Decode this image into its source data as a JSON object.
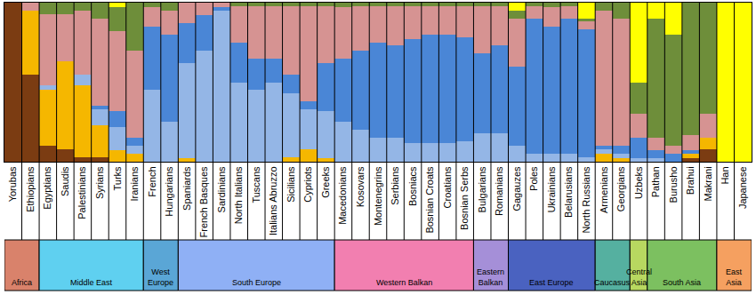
{
  "chart_data": {
    "type": "bar",
    "stacked": true,
    "tick_labels": "x",
    "ylim": [
      0,
      1
    ],
    "yticks": [],
    "categories": [
      "Yorubas",
      "Ethiopians",
      "Egyptians",
      "Saudis",
      "Palestinians",
      "Syrians",
      "Turks",
      "Iranians",
      "French",
      "Hungarians",
      "Spaniards",
      "French Basques",
      "Sardinians",
      "North Italians",
      "Tuscans",
      "Italians Abruzzo",
      "Sicilians",
      "Cypriots",
      "Greeks",
      "Macedonians",
      "Kosovars",
      "Montenegrins",
      "Serbians",
      "Bosniacs",
      "Bosnian Croats",
      "Croatians",
      "Bosnian Serbs",
      "Bulgarians",
      "Romanians",
      "Gagauzes",
      "Poles",
      "Ukrainians",
      "Belarusians",
      "North Russians",
      "Armenians",
      "Georgians",
      "Uzbeks",
      "Pathan",
      "Burusho",
      "Brahui",
      "Makrani",
      "Han",
      "Japanese"
    ],
    "series": [
      {
        "color": "#7b3c12",
        "values": [
          1,
          0.55,
          0.1,
          0.08,
          0.03,
          0.03,
          0,
          0,
          0,
          0,
          0,
          0,
          0,
          0,
          0,
          0,
          0,
          0,
          0,
          0,
          0,
          0,
          0,
          0,
          0,
          0,
          0,
          0,
          0,
          0,
          0,
          0,
          0,
          0,
          0,
          0,
          0,
          0,
          0,
          0.02,
          0.08,
          0,
          0
        ]
      },
      {
        "color": "#f5b700",
        "values": [
          0,
          0.4,
          0.35,
          0.55,
          0.45,
          0.2,
          0.07,
          0.05,
          0,
          0,
          0.02,
          0,
          0,
          0,
          0,
          0,
          0.03,
          0.08,
          0.02,
          0,
          0,
          0,
          0,
          0,
          0,
          0,
          0,
          0,
          0,
          0,
          0,
          0,
          0,
          0,
          0.05,
          0.02,
          0,
          0,
          0,
          0.03,
          0.07,
          0,
          0
        ]
      },
      {
        "color": "#94b6e6",
        "values": [
          0,
          0,
          0.03,
          0,
          0.07,
          0.1,
          0.15,
          0.05,
          0.45,
          0.25,
          0.6,
          0.7,
          0.95,
          0.5,
          0.45,
          0.5,
          0.4,
          0.25,
          0.3,
          0.25,
          0.2,
          0.15,
          0.15,
          0.12,
          0.12,
          0.12,
          0.13,
          0.18,
          0.18,
          0.1,
          0.05,
          0.05,
          0.05,
          0.03,
          0.03,
          0.03,
          0.02,
          0.02,
          0,
          0,
          0,
          0,
          0
        ]
      },
      {
        "color": "#4a86d6",
        "values": [
          0,
          0,
          0,
          0,
          0,
          0.02,
          0.1,
          0.05,
          0.4,
          0.55,
          0.25,
          0.22,
          0.02,
          0.25,
          0.2,
          0.15,
          0.12,
          0.05,
          0.3,
          0.4,
          0.5,
          0.6,
          0.58,
          0.65,
          0.68,
          0.68,
          0.65,
          0.5,
          0.55,
          0.5,
          0.85,
          0.8,
          0.85,
          0.8,
          0.02,
          0.05,
          0.13,
          0.05,
          0.05,
          0.02,
          0,
          0,
          0
        ]
      },
      {
        "color": "#d69392",
        "values": [
          0,
          0.05,
          0.45,
          0.3,
          0.4,
          0.55,
          0.5,
          0.55,
          0.12,
          0.15,
          0.13,
          0.08,
          0.03,
          0.23,
          0.33,
          0.33,
          0.43,
          0.6,
          0.36,
          0.32,
          0.28,
          0.23,
          0.25,
          0.21,
          0.18,
          0.18,
          0.2,
          0.3,
          0.25,
          0.3,
          0.08,
          0.12,
          0.08,
          0.05,
          0.85,
          0.8,
          0.15,
          0.08,
          0.05,
          0.1,
          0.15,
          0,
          0
        ]
      },
      {
        "color": "#6e8e3a",
        "values": [
          0,
          0,
          0.07,
          0.07,
          0.05,
          0.1,
          0.15,
          0.3,
          0.03,
          0.05,
          0,
          0,
          0,
          0.02,
          0.02,
          0.02,
          0.02,
          0.02,
          0.02,
          0.03,
          0.02,
          0.02,
          0.02,
          0.02,
          0.02,
          0.02,
          0.02,
          0.02,
          0.02,
          0.05,
          0.02,
          0.03,
          0.02,
          0.02,
          0.05,
          0.1,
          0.2,
          0.75,
          0.7,
          0.83,
          0.7,
          0,
          0
        ]
      },
      {
        "color": "#ffff00",
        "values": [
          0,
          0,
          0,
          0,
          0,
          0,
          0.03,
          0,
          0,
          0,
          0,
          0,
          0,
          0,
          0,
          0,
          0,
          0,
          0,
          0,
          0,
          0,
          0,
          0,
          0,
          0,
          0,
          0,
          0,
          0.05,
          0,
          0,
          0,
          0.1,
          0,
          0,
          0.5,
          0.1,
          0.2,
          0,
          0,
          1,
          1
        ]
      }
    ],
    "groups": [
      {
        "label": "Africa",
        "color": "#d9826b",
        "members": [
          "Yorubas",
          "Ethiopians"
        ]
      },
      {
        "label": "Middle East",
        "color": "#5fd0f0",
        "members": [
          "Egyptians",
          "Saudis",
          "Palestinians",
          "Syrians",
          "Turks",
          "Iranians"
        ]
      },
      {
        "label": "West Europe",
        "color": "#5aa6d6",
        "members": [
          "French",
          "Hungarians"
        ]
      },
      {
        "label": "South Europe",
        "color": "#8fb0f5",
        "members": [
          "Spaniards",
          "French Basques",
          "Sardinians",
          "North Italians",
          "Tuscans",
          "Italians Abruzzo",
          "Sicilians",
          "Cypriots",
          "Greeks"
        ]
      },
      {
        "label": "Western Balkan",
        "color": "#f27fb0",
        "members": [
          "Macedonians",
          "Kosovars",
          "Montenegrins",
          "Serbians",
          "Bosniacs",
          "Bosnian Croats",
          "Croatians",
          "Bosnian Serbs"
        ]
      },
      {
        "label": "Eastern Balkan",
        "color": "#a58fd8",
        "members": [
          "Bulgarians",
          "Romanians"
        ]
      },
      {
        "label": "East Europe",
        "color": "#4a62c0",
        "members": [
          "Gagauzes",
          "Poles",
          "Ukrainians",
          "Belarusians",
          "North Russians"
        ]
      },
      {
        "label": "Caucasus",
        "color": "#55b0a0",
        "members": [
          "Armenians",
          "Georgians"
        ]
      },
      {
        "label": "Central Asia",
        "color": "#b8d860",
        "members": [
          "Uzbeks"
        ]
      },
      {
        "label": "South Asia",
        "color": "#7cc060",
        "members": [
          "Pathan",
          "Burusho",
          "Brahui",
          "Makrani"
        ]
      },
      {
        "label": "East Asia",
        "color": "#f5a060",
        "members": [
          "Han",
          "Japanese"
        ]
      }
    ]
  }
}
